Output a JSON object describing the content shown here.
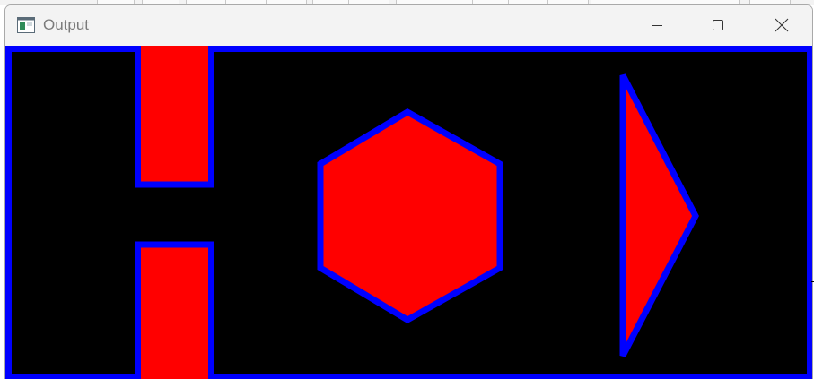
{
  "window": {
    "title": "Output",
    "buttons": {
      "minimize": "minimize-icon",
      "maximize": "maximize-icon",
      "close": "close-icon"
    }
  },
  "canvas": {
    "background": "#000000",
    "fill_color": "#ff0000",
    "stroke_color": "#0000ff",
    "shapes": [
      "rectangle",
      "rectangle",
      "hexagon",
      "triangle"
    ]
  }
}
